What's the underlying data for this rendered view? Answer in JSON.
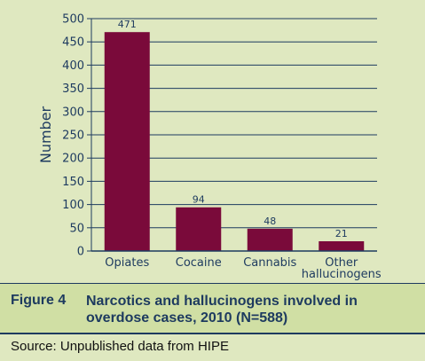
{
  "chart_data": {
    "type": "bar",
    "categories": [
      [
        "Opiates"
      ],
      [
        "Cocaine"
      ],
      [
        "Cannabis"
      ],
      [
        "Other",
        "hallucinogens"
      ]
    ],
    "values": [
      471,
      94,
      48,
      21
    ],
    "data_labels": [
      "471",
      "94",
      "48",
      "21"
    ],
    "ylabel": "Number",
    "ylim": [
      0,
      500
    ],
    "yticks": [
      0,
      50,
      100,
      150,
      200,
      250,
      300,
      350,
      400,
      450,
      500
    ],
    "grid": true,
    "bar_color": "#7a0a3a",
    "grid_color": "#1d3a5f"
  },
  "caption": {
    "figure_number": "Figure 4",
    "title": "Narcotics and hallucinogens involved in overdose cases, 2010 (N=588)"
  },
  "source": "Source: Unpublished data from HIPE"
}
